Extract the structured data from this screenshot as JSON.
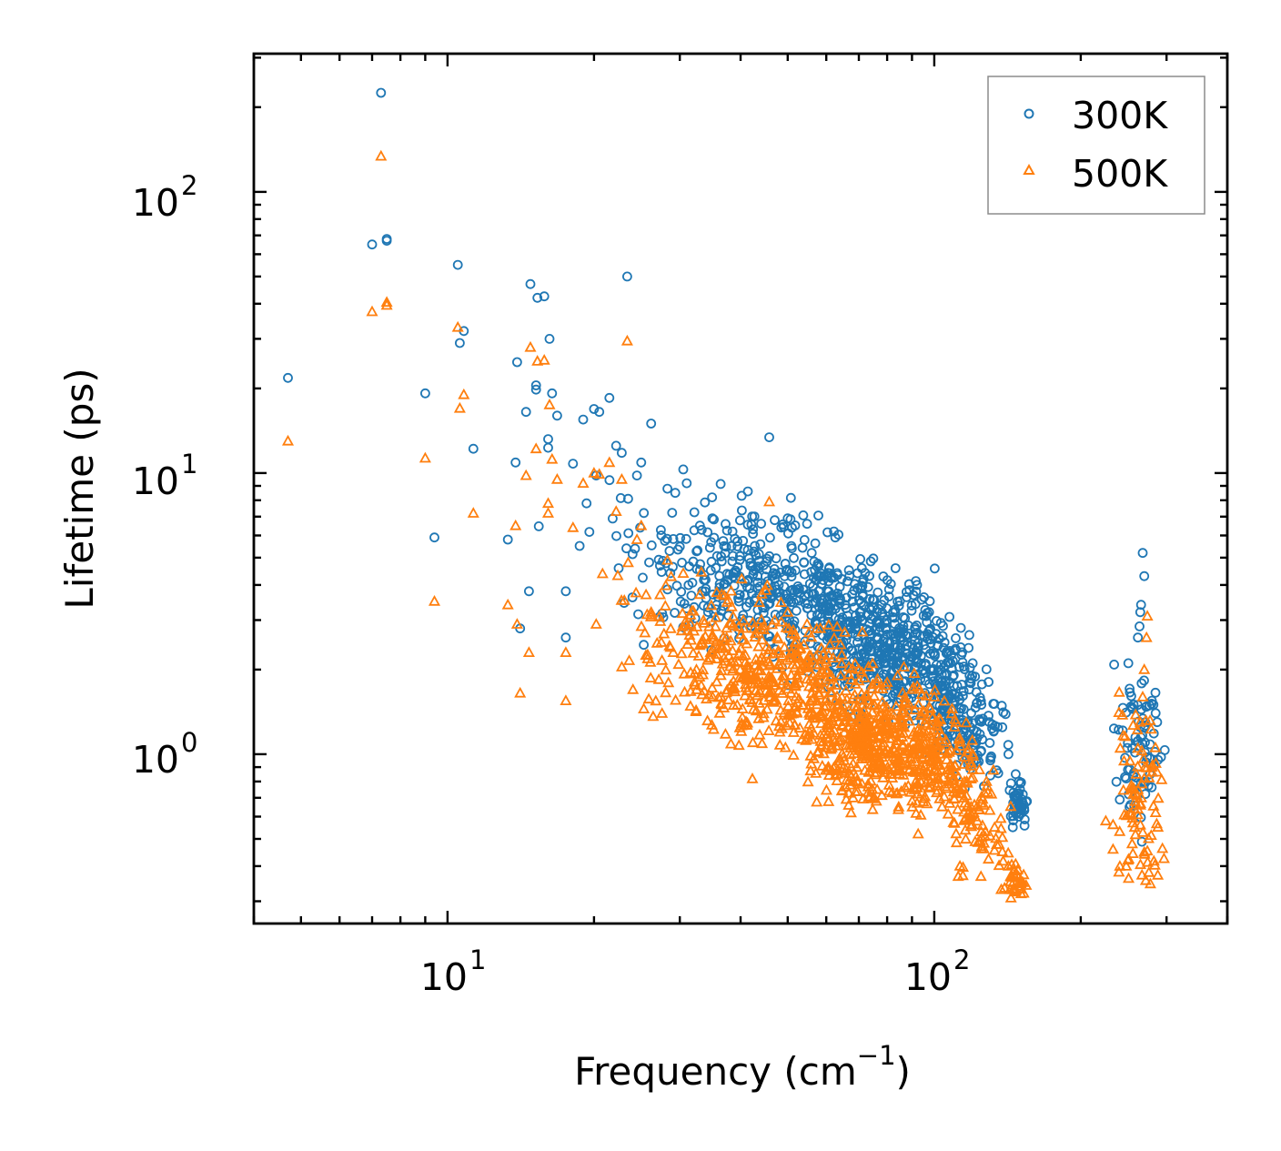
{
  "chart_data": {
    "type": "scatter",
    "title": "",
    "xlabel": "Frequency (cm",
    "xlabel_sup": "−1",
    "xlabel_tail": ")",
    "ylabel": "Lifetime (ps)",
    "xscale": "log",
    "yscale": "log",
    "xlim": [
      4.0,
      400
    ],
    "ylim": [
      0.25,
      310
    ],
    "xticks": [
      {
        "base": "10",
        "exp": "1",
        "value": 10
      },
      {
        "base": "10",
        "exp": "2",
        "value": 100
      }
    ],
    "yticks": [
      {
        "base": "10",
        "exp": "0",
        "value": 1
      },
      {
        "base": "10",
        "exp": "1",
        "value": 10
      },
      {
        "base": "10",
        "exp": "2",
        "value": 100
      }
    ],
    "legend": {
      "position": "top-right"
    },
    "series": [
      {
        "name": "300K",
        "marker": "circle",
        "color": "#1f77b4",
        "points": [
          [
            4.7,
            21.8
          ],
          [
            7.0,
            65
          ],
          [
            7.3,
            225
          ],
          [
            7.5,
            68
          ],
          [
            7.5,
            67
          ],
          [
            9.0,
            19.2
          ],
          [
            9.4,
            5.9
          ],
          [
            10.5,
            55
          ],
          [
            10.6,
            29
          ],
          [
            10.8,
            32
          ],
          [
            11.3,
            12.2
          ],
          [
            13.3,
            5.8
          ],
          [
            13.8,
            10.9
          ],
          [
            13.9,
            24.8
          ],
          [
            14.1,
            2.8
          ],
          [
            14.5,
            16.5
          ],
          [
            14.7,
            3.8
          ],
          [
            14.8,
            47
          ],
          [
            15.2,
            20.5
          ],
          [
            15.2,
            19.8
          ],
          [
            15.3,
            42
          ],
          [
            15.8,
            42.5
          ],
          [
            16.1,
            13.2
          ],
          [
            16.1,
            12.3
          ],
          [
            16.2,
            30
          ],
          [
            16.4,
            19.2
          ],
          [
            16.8,
            16
          ],
          [
            17.5,
            3.8
          ],
          [
            17.5,
            2.6
          ],
          [
            18.1,
            10.8
          ],
          [
            19.0,
            15.5
          ],
          [
            19.3,
            7.8
          ],
          [
            20.0,
            16.9
          ],
          [
            20.5,
            16.5
          ],
          [
            20.2,
            9.8
          ],
          [
            21.5,
            18.5
          ],
          [
            22.2,
            12.5
          ],
          [
            22.8,
            11.8
          ],
          [
            23.4,
            50
          ],
          [
            23.5,
            8.1
          ],
          [
            24.5,
            9.8
          ],
          [
            25.0,
            10.9
          ],
          [
            25.3,
            2.45
          ],
          [
            26.2,
            15
          ],
          [
            27.5,
            6
          ],
          [
            28.3,
            8.8
          ],
          [
            30.5,
            10.3
          ],
          [
            31,
            9.2
          ],
          [
            33,
            6.5
          ],
          [
            35,
            6.9
          ],
          [
            37,
            5.5
          ],
          [
            38.5,
            6.2
          ],
          [
            40.2,
            8.3
          ],
          [
            41.4,
            8.6
          ],
          [
            43,
            5.1
          ],
          [
            45.8,
            13.4
          ],
          [
            47,
            6.8
          ],
          [
            48.5,
            6.4
          ],
          [
            50,
            6.9
          ],
          [
            51,
            5.4
          ],
          [
            54.8,
            6.6
          ],
          [
            56,
            5.2
          ],
          [
            58,
            4.3
          ],
          [
            61,
            4.4
          ],
          [
            62.2,
            6.2
          ],
          [
            62.6,
            5.9
          ],
          [
            64.5,
            4.2
          ],
          [
            66,
            3.6
          ],
          [
            71.3,
            3.7
          ],
          [
            78,
            3.4
          ],
          [
            85,
            3.5
          ],
          [
            92.2,
            4.0
          ],
          [
            105,
            2.5
          ],
          [
            113.3,
            2.4
          ],
          [
            118,
            1.8
          ],
          [
            125,
            1.5
          ],
          [
            135,
            1.25
          ],
          [
            142,
            1.0
          ],
          [
            147,
            0.85
          ],
          [
            150,
            0.75
          ],
          [
            152,
            0.72
          ],
          [
            155,
            0.68
          ],
          [
            145,
            0.55
          ],
          [
            149,
            0.6
          ],
          [
            151,
            0.64
          ],
          [
            268,
            5.2
          ],
          [
            270,
            4.3
          ],
          [
            266,
            3.4
          ],
          [
            265,
            3.2
          ],
          [
            264,
            2.85
          ],
          [
            262,
            2.6
          ],
          [
            280,
            1.55
          ],
          [
            282,
            1.5
          ],
          [
            285,
            1.4
          ],
          [
            287,
            1.3
          ],
          [
            284,
            1.02
          ],
          [
            255,
            1.05
          ],
          [
            250,
            0.88
          ],
          [
            248,
            0.82
          ],
          [
            251,
            0.72
          ],
          [
            253,
            0.66
          ],
          [
            258,
            0.75
          ],
          [
            259,
            1.15
          ]
        ]
      },
      {
        "name": "500K",
        "marker": "triangle",
        "color": "#ff7f0e",
        "points": [
          [
            4.7,
            13.0
          ],
          [
            7.0,
            37.5
          ],
          [
            7.3,
            134
          ],
          [
            7.5,
            39.5
          ],
          [
            7.5,
            40.5
          ],
          [
            9.0,
            11.3
          ],
          [
            9.4,
            3.5
          ],
          [
            10.5,
            33
          ],
          [
            10.6,
            17
          ],
          [
            10.8,
            19
          ],
          [
            11.3,
            7.2
          ],
          [
            13.3,
            3.4
          ],
          [
            13.8,
            6.5
          ],
          [
            13.9,
            2.9
          ],
          [
            14.1,
            1.65
          ],
          [
            14.5,
            9.8
          ],
          [
            14.7,
            2.3
          ],
          [
            14.8,
            28
          ],
          [
            15.2,
            12.2
          ],
          [
            15.3,
            25
          ],
          [
            15.8,
            25.2
          ],
          [
            16.1,
            7.8
          ],
          [
            16.1,
            7.2
          ],
          [
            16.2,
            17.5
          ],
          [
            16.4,
            11.2
          ],
          [
            16.8,
            9.5
          ],
          [
            17.5,
            2.3
          ],
          [
            17.5,
            1.55
          ],
          [
            18.1,
            6.4
          ],
          [
            19.0,
            9.2
          ],
          [
            20.0,
            10
          ],
          [
            20.2,
            2.9
          ],
          [
            20.5,
            9.9
          ],
          [
            21.5,
            10.9
          ],
          [
            22.2,
            7.3
          ],
          [
            22.8,
            9.5
          ],
          [
            23.4,
            29.5
          ],
          [
            23.5,
            4.8
          ],
          [
            24.5,
            5.8
          ],
          [
            25.0,
            6.5
          ],
          [
            25.3,
            1.45
          ],
          [
            26.2,
            3.2
          ],
          [
            27.5,
            2.5
          ],
          [
            28.3,
            4.9
          ],
          [
            30.5,
            4.4
          ],
          [
            33,
            3.7
          ],
          [
            35,
            2.6
          ],
          [
            37,
            2.2
          ],
          [
            40.2,
            4.2
          ],
          [
            45.8,
            7.9
          ],
          [
            47,
            3.0
          ],
          [
            50,
            3.2
          ],
          [
            54.8,
            2.9
          ],
          [
            62,
            2.2
          ],
          [
            70,
            2.0
          ],
          [
            80,
            1.8
          ],
          [
            90,
            1.7
          ],
          [
            100,
            1.6
          ],
          [
            110,
            1.25
          ],
          [
            120,
            1.0
          ],
          [
            128,
            0.8
          ],
          [
            133,
            0.55
          ],
          [
            138,
            0.45
          ],
          [
            142,
            0.4
          ],
          [
            146,
            0.37
          ],
          [
            150,
            0.34
          ],
          [
            152,
            0.35
          ],
          [
            145,
            0.33
          ],
          [
            274,
            3.1
          ],
          [
            273,
            2.6
          ],
          [
            270,
            2.0
          ],
          [
            268,
            1.6
          ],
          [
            265,
            1.3
          ],
          [
            262,
            1.05
          ],
          [
            260,
            0.85
          ],
          [
            280,
            0.9
          ],
          [
            285,
            0.62
          ],
          [
            288,
            0.55
          ],
          [
            255,
            0.48
          ],
          [
            250,
            0.42
          ],
          [
            248,
            0.4
          ],
          [
            258,
            0.55
          ],
          [
            276,
            0.38
          ]
        ]
      }
    ],
    "clusters": [
      {
        "series": 0,
        "center": [
          32,
          5.0
        ],
        "spread": [
          0.12,
          0.12
        ],
        "count": 90
      },
      {
        "series": 0,
        "center": [
          45,
          4.0
        ],
        "spread": [
          0.1,
          0.1
        ],
        "count": 200
      },
      {
        "series": 0,
        "center": [
          60,
          3.3
        ],
        "spread": [
          0.09,
          0.09
        ],
        "count": 200
      },
      {
        "series": 0,
        "center": [
          75,
          2.4
        ],
        "spread": [
          0.07,
          0.1
        ],
        "count": 200
      },
      {
        "series": 0,
        "center": [
          90,
          2.1
        ],
        "spread": [
          0.06,
          0.1
        ],
        "count": 200
      },
      {
        "series": 0,
        "center": [
          108,
          1.5
        ],
        "spread": [
          0.04,
          0.1
        ],
        "count": 120
      },
      {
        "series": 0,
        "center": [
          125,
          1.1
        ],
        "spread": [
          0.03,
          0.08
        ],
        "count": 60
      },
      {
        "series": 0,
        "center": [
          148,
          0.68
        ],
        "spread": [
          0.01,
          0.04
        ],
        "count": 40
      },
      {
        "series": 0,
        "center": [
          262,
          1.1
        ],
        "spread": [
          0.025,
          0.14
        ],
        "count": 70
      },
      {
        "series": 1,
        "center": [
          30,
          2.8
        ],
        "spread": [
          0.08,
          0.12
        ],
        "count": 60
      },
      {
        "series": 1,
        "center": [
          36,
          2.1
        ],
        "spread": [
          0.08,
          0.1
        ],
        "count": 80
      },
      {
        "series": 1,
        "center": [
          45,
          2.0
        ],
        "spread": [
          0.08,
          0.12
        ],
        "count": 200
      },
      {
        "series": 1,
        "center": [
          58,
          1.5
        ],
        "spread": [
          0.07,
          0.12
        ],
        "count": 200
      },
      {
        "series": 1,
        "center": [
          70,
          1.05
        ],
        "spread": [
          0.05,
          0.1
        ],
        "count": 200
      },
      {
        "series": 1,
        "center": [
          85,
          1.15
        ],
        "spread": [
          0.05,
          0.1
        ],
        "count": 200
      },
      {
        "series": 1,
        "center": [
          103,
          0.9
        ],
        "spread": [
          0.04,
          0.1
        ],
        "count": 150
      },
      {
        "series": 1,
        "center": [
          122,
          0.55
        ],
        "spread": [
          0.03,
          0.08
        ],
        "count": 70
      },
      {
        "series": 1,
        "center": [
          147,
          0.36
        ],
        "spread": [
          0.012,
          0.03
        ],
        "count": 30
      },
      {
        "series": 1,
        "center": [
          262,
          0.7
        ],
        "spread": [
          0.025,
          0.16
        ],
        "count": 80
      }
    ]
  }
}
